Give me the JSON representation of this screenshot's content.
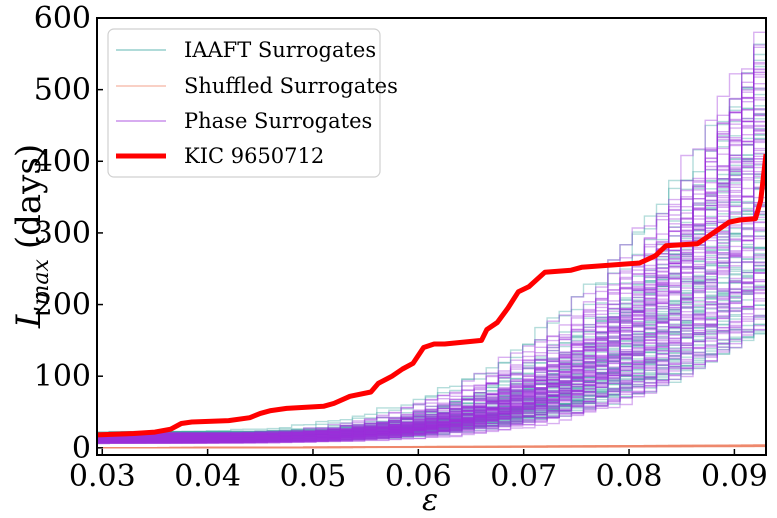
{
  "chart_data": {
    "type": "line",
    "title": "",
    "xlabel": "ε",
    "ylabel_main": "L",
    "ylabel_sub": "max",
    "ylabel_unit": "(days)",
    "xlim": [
      0.0295,
      0.093
    ],
    "ylim": [
      -10,
      600
    ],
    "xticks": [
      0.03,
      0.04,
      0.05,
      0.06,
      0.07,
      0.08,
      0.09
    ],
    "xtick_labels": [
      "0.03",
      "0.04",
      "0.05",
      "0.06",
      "0.07",
      "0.08",
      "0.09"
    ],
    "yticks": [
      0,
      100,
      200,
      300,
      400,
      500,
      600
    ],
    "ytick_labels": [
      "0",
      "100",
      "200",
      "300",
      "400",
      "500",
      "600"
    ],
    "grid": false,
    "legend_position": "top-left",
    "legend": [
      {
        "label": "IAAFT Surrogates",
        "color": "#3aa6a0"
      },
      {
        "label": "Shuffled Surrogates",
        "color": "#f08a6e"
      },
      {
        "label": "Phase Surrogates",
        "color": "#9b30d9"
      },
      {
        "label": "KIC 9650712",
        "color": "#ff0000"
      }
    ],
    "surrogate_ensembles": [
      {
        "name": "IAAFT Surrogates",
        "color": "#3aa6a0",
        "count": 60,
        "start_range": [
          8,
          22
        ],
        "end_range": [
          175,
          600
        ],
        "growth_exponent_range": [
          3.2,
          5.0
        ]
      },
      {
        "name": "Phase Surrogates",
        "color": "#9b30d9",
        "count": 90,
        "start_range": [
          6,
          20
        ],
        "end_range": [
          185,
          600
        ],
        "growth_exponent_range": [
          3.2,
          5.0
        ]
      },
      {
        "name": "Shuffled Surrogates",
        "color": "#f08a6e",
        "count": 40,
        "start_range": [
          0,
          0
        ],
        "end_range": [
          2,
          4
        ],
        "growth_exponent_range": [
          1.0,
          1.5
        ]
      }
    ],
    "series": [
      {
        "name": "KIC 9650712",
        "color": "#ff0000",
        "x": [
          0.0295,
          0.033,
          0.035,
          0.0365,
          0.0375,
          0.0385,
          0.042,
          0.044,
          0.045,
          0.046,
          0.0475,
          0.051,
          0.052,
          0.0535,
          0.0555,
          0.0562,
          0.0575,
          0.0585,
          0.0595,
          0.0605,
          0.0615,
          0.0625,
          0.066,
          0.0665,
          0.0675,
          0.0685,
          0.0695,
          0.0705,
          0.072,
          0.0745,
          0.0755,
          0.081,
          0.0825,
          0.0835,
          0.0865,
          0.0875,
          0.0885,
          0.0895,
          0.0905,
          0.092,
          0.0925,
          0.093
        ],
        "y": [
          18,
          20,
          22,
          26,
          34,
          36,
          38,
          42,
          48,
          52,
          55,
          58,
          62,
          72,
          78,
          90,
          100,
          110,
          118,
          140,
          145,
          145,
          150,
          165,
          175,
          195,
          218,
          225,
          245,
          248,
          252,
          258,
          268,
          282,
          285,
          295,
          305,
          315,
          318,
          320,
          345,
          410
        ]
      }
    ]
  }
}
